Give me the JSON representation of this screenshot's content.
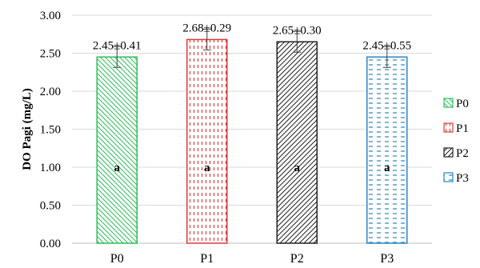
{
  "chart_data": {
    "type": "bar",
    "title": "",
    "xlabel": "",
    "ylabel": "DO Pagi (mg/L)",
    "ylim": [
      0,
      3
    ],
    "ytick_step": 0.5,
    "yticks": [
      "0.00",
      "0.50",
      "1.00",
      "1.50",
      "2.00",
      "2.50",
      "3.00"
    ],
    "grid": true,
    "legend_position": "right",
    "categories": [
      "P0",
      "P1",
      "P2",
      "P3"
    ],
    "values": [
      2.45,
      2.68,
      2.65,
      2.45
    ],
    "error": [
      0.41,
      0.29,
      0.3,
      0.55
    ],
    "data_labels": [
      "2.45±0.41",
      "2.68±0.29",
      "2.65±0.30",
      "2.45±0.55"
    ],
    "significance": [
      "a",
      "a",
      "a",
      "a"
    ],
    "colors": [
      "#2ebd5a",
      "#e03a3a",
      "#222222",
      "#2b86c5"
    ],
    "patterns": [
      "diagonal-left",
      "dashed-vertical",
      "diagonal-right",
      "dashed-horizontal"
    ],
    "legend": [
      "P0",
      "P1",
      "P2",
      "P3"
    ]
  }
}
